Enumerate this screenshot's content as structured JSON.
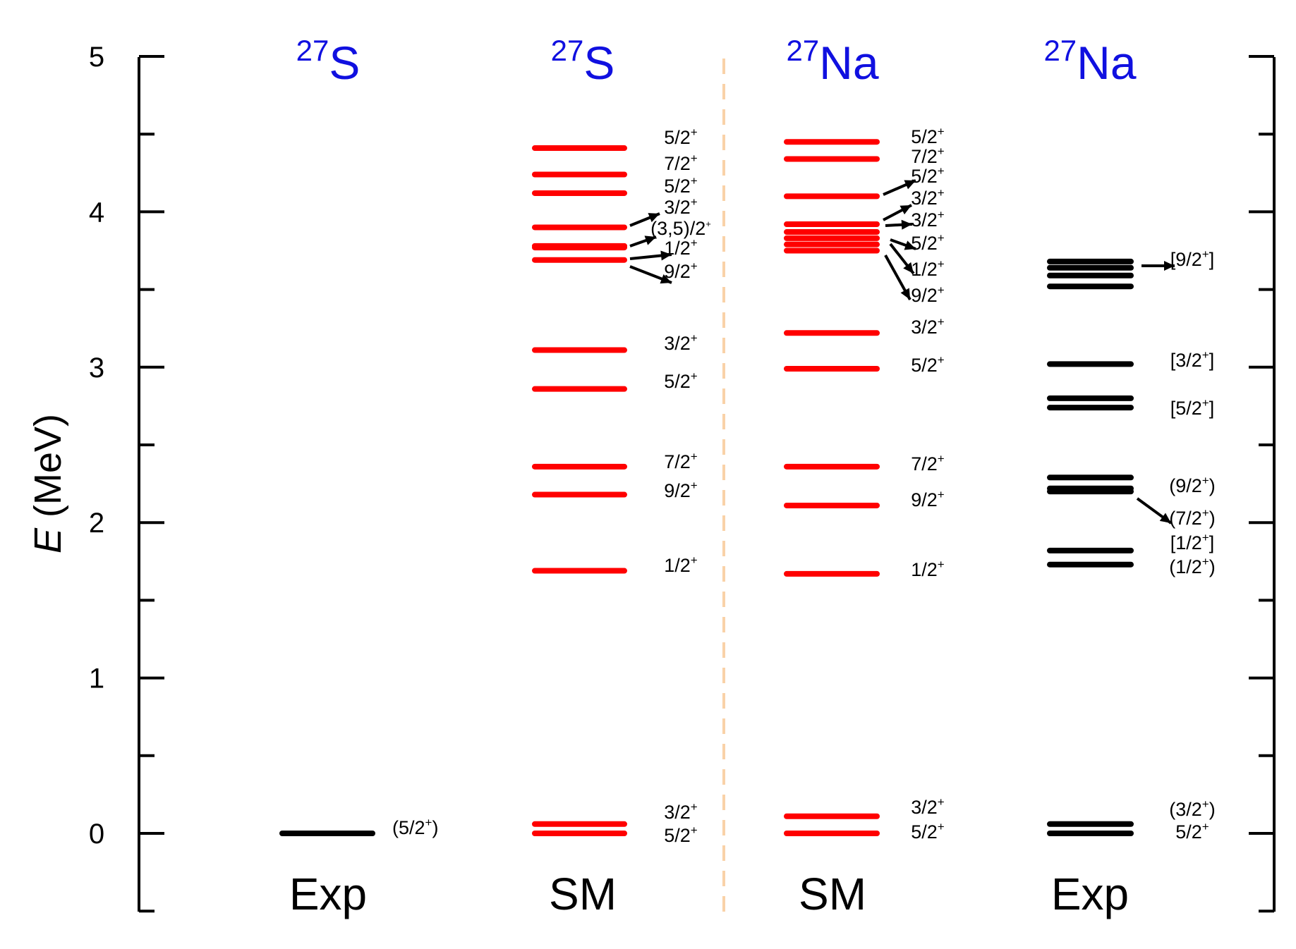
{
  "chart_data": {
    "type": "level-scheme",
    "ylabel_italic": "E",
    "ylabel_rest": " (MeV)",
    "ylim": [
      -0.5,
      5
    ],
    "yticks": [
      0,
      1,
      2,
      3,
      4,
      5
    ],
    "columns": [
      {
        "nucleus_mass": "27",
        "nucleus_symbol": "S",
        "label": "Exp",
        "color": "#000000",
        "levels": [
          {
            "energy": 0.0,
            "spin": "(5/2",
            "parity": "+",
            "close": ")"
          }
        ]
      },
      {
        "nucleus_mass": "27",
        "nucleus_symbol": "S",
        "label": "SM",
        "color": "#ff0000",
        "levels": [
          {
            "energy": 0.0,
            "spin": "5/2",
            "parity": "+",
            "close": ""
          },
          {
            "energy": 0.06,
            "spin": "3/2",
            "parity": "+",
            "close": ""
          },
          {
            "energy": 1.69,
            "spin": "1/2",
            "parity": "+",
            "close": ""
          },
          {
            "energy": 2.18,
            "spin": "9/2",
            "parity": "+",
            "close": ""
          },
          {
            "energy": 2.36,
            "spin": "7/2",
            "parity": "+",
            "close": ""
          },
          {
            "energy": 2.86,
            "spin": "5/2",
            "parity": "+",
            "close": ""
          },
          {
            "energy": 3.11,
            "spin": "3/2",
            "parity": "+",
            "close": ""
          },
          {
            "energy": 3.69,
            "spin": "9/2",
            "parity": "+",
            "close": ""
          },
          {
            "energy": 3.77,
            "spin": "1/2",
            "parity": "+",
            "close": ""
          },
          {
            "energy": 3.78,
            "spin": "(3,5)/2",
            "parity": "+",
            "close": ""
          },
          {
            "energy": 3.9,
            "spin": "3/2",
            "parity": "+",
            "close": ""
          },
          {
            "energy": 4.12,
            "spin": "5/2",
            "parity": "+",
            "close": ""
          },
          {
            "energy": 4.24,
            "spin": "7/2",
            "parity": "+",
            "close": ""
          },
          {
            "energy": 4.41,
            "spin": "5/2",
            "parity": "+",
            "close": ""
          }
        ]
      },
      {
        "nucleus_mass": "27",
        "nucleus_symbol": "Na",
        "label": "SM",
        "color": "#ff0000",
        "levels": [
          {
            "energy": 0.0,
            "spin": "5/2",
            "parity": "+",
            "close": ""
          },
          {
            "energy": 0.11,
            "spin": "3/2",
            "parity": "+",
            "close": ""
          },
          {
            "energy": 1.67,
            "spin": "1/2",
            "parity": "+",
            "close": ""
          },
          {
            "energy": 2.11,
            "spin": "9/2",
            "parity": "+",
            "close": ""
          },
          {
            "energy": 2.36,
            "spin": "7/2",
            "parity": "+",
            "close": ""
          },
          {
            "energy": 2.99,
            "spin": "5/2",
            "parity": "+",
            "close": ""
          },
          {
            "energy": 3.22,
            "spin": "3/2",
            "parity": "+",
            "close": ""
          },
          {
            "energy": 3.75,
            "spin": "9/2",
            "parity": "+",
            "close": ""
          },
          {
            "energy": 3.79,
            "spin": "1/2",
            "parity": "+",
            "close": ""
          },
          {
            "energy": 3.83,
            "spin": "5/2",
            "parity": "+",
            "close": ""
          },
          {
            "energy": 3.87,
            "spin": "3/2",
            "parity": "+",
            "close": ""
          },
          {
            "energy": 3.92,
            "spin": "3/2",
            "parity": "+",
            "close": ""
          },
          {
            "energy": 4.1,
            "spin": "5/2",
            "parity": "+",
            "close": ""
          },
          {
            "energy": 4.34,
            "spin": "7/2",
            "parity": "+",
            "close": ""
          },
          {
            "energy": 4.45,
            "spin": "5/2",
            "parity": "+",
            "close": ""
          }
        ]
      },
      {
        "nucleus_mass": "27",
        "nucleus_symbol": "Na",
        "label": "Exp",
        "color": "#000000",
        "levels": [
          {
            "energy": 0.0,
            "spin": "5/2",
            "parity": "+",
            "close": ""
          },
          {
            "energy": 0.06,
            "spin": "(3/2",
            "parity": "+",
            "close": ")"
          },
          {
            "energy": 1.73,
            "spin": "(1/2",
            "parity": "+",
            "close": ")"
          },
          {
            "energy": 1.82,
            "spin": "[1/2",
            "parity": "+",
            "close": "]"
          },
          {
            "energy": 2.2,
            "spin": "(7/2",
            "parity": "+",
            "close": ")"
          },
          {
            "energy": 2.22
          },
          {
            "energy": 2.29,
            "spin": "(9/2",
            "parity": "+",
            "close": ")"
          },
          {
            "energy": 2.74,
            "spin": "[5/2",
            "parity": "+",
            "close": "]"
          },
          {
            "energy": 2.8
          },
          {
            "energy": 3.02,
            "spin": "[3/2",
            "parity": "+",
            "close": "]"
          },
          {
            "energy": 3.52
          },
          {
            "energy": 3.59
          },
          {
            "energy": 3.64
          },
          {
            "energy": 3.68,
            "spin": "[9/2",
            "parity": "+",
            "close": "]"
          }
        ]
      }
    ]
  }
}
